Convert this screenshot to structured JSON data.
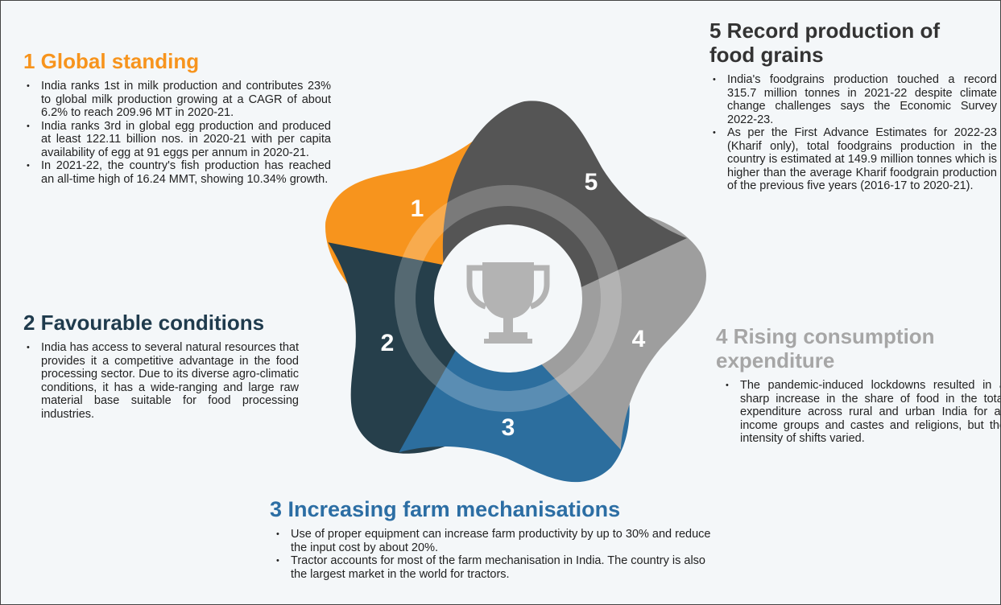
{
  "sections": [
    {
      "title": "1 Global standing",
      "bullets": [
        "India ranks 1st in milk production and contributes 23% to global milk production growing at a CAGR of about 6.2% to reach 209.96 MT in 2020-21.",
        "India ranks 3rd in global egg production and produced at least 122.11 billion nos. in 2020-21 with per capita availability of egg at 91 eggs per annum in 2020-21.",
        "In 2021-22, the country's fish production has reached an all-time high of 16.24 MMT, showing 10.34% growth."
      ]
    },
    {
      "title": "2 Favourable conditions",
      "bullets": [
        "India has access to several natural resources that provides it a competitive advantage in the food processing sector. Due to its diverse agro-climatic conditions, it has a wide-ranging and large raw material base suitable for food processing industries."
      ]
    },
    {
      "title": "3 Increasing farm mechanisations",
      "bullets": [
        "Use of proper equipment can increase farm productivity by up to 30% and reduce the input cost by about 20%.",
        "Tractor accounts for most of the farm mechanisation in India. The country is also the largest market in the world for tractors."
      ]
    },
    {
      "title": "4 Rising consumption expenditure",
      "bullets": [
        "The pandemic-induced lockdowns resulted in a sharp increase in the share of food in the total expenditure across rural and urban India for all income groups and castes and religions, but the intensity of shifts varied."
      ]
    },
    {
      "title": "5 Record production of food grains",
      "bullets": [
        "India's foodgrains production touched a record 315.7 million tonnes in 2021-22 despite climate change challenges says the Economic Survey 2022-23.",
        "As per the First Advance Estimates for 2022-23 (Kharif only), total foodgrains production in the country is estimated at 149.9 million tonnes which is higher than the average Kharif foodgrain production of the previous five years (2016-17 to 2020-21)."
      ]
    }
  ],
  "petals": [
    "1",
    "2",
    "3",
    "4",
    "5"
  ]
}
